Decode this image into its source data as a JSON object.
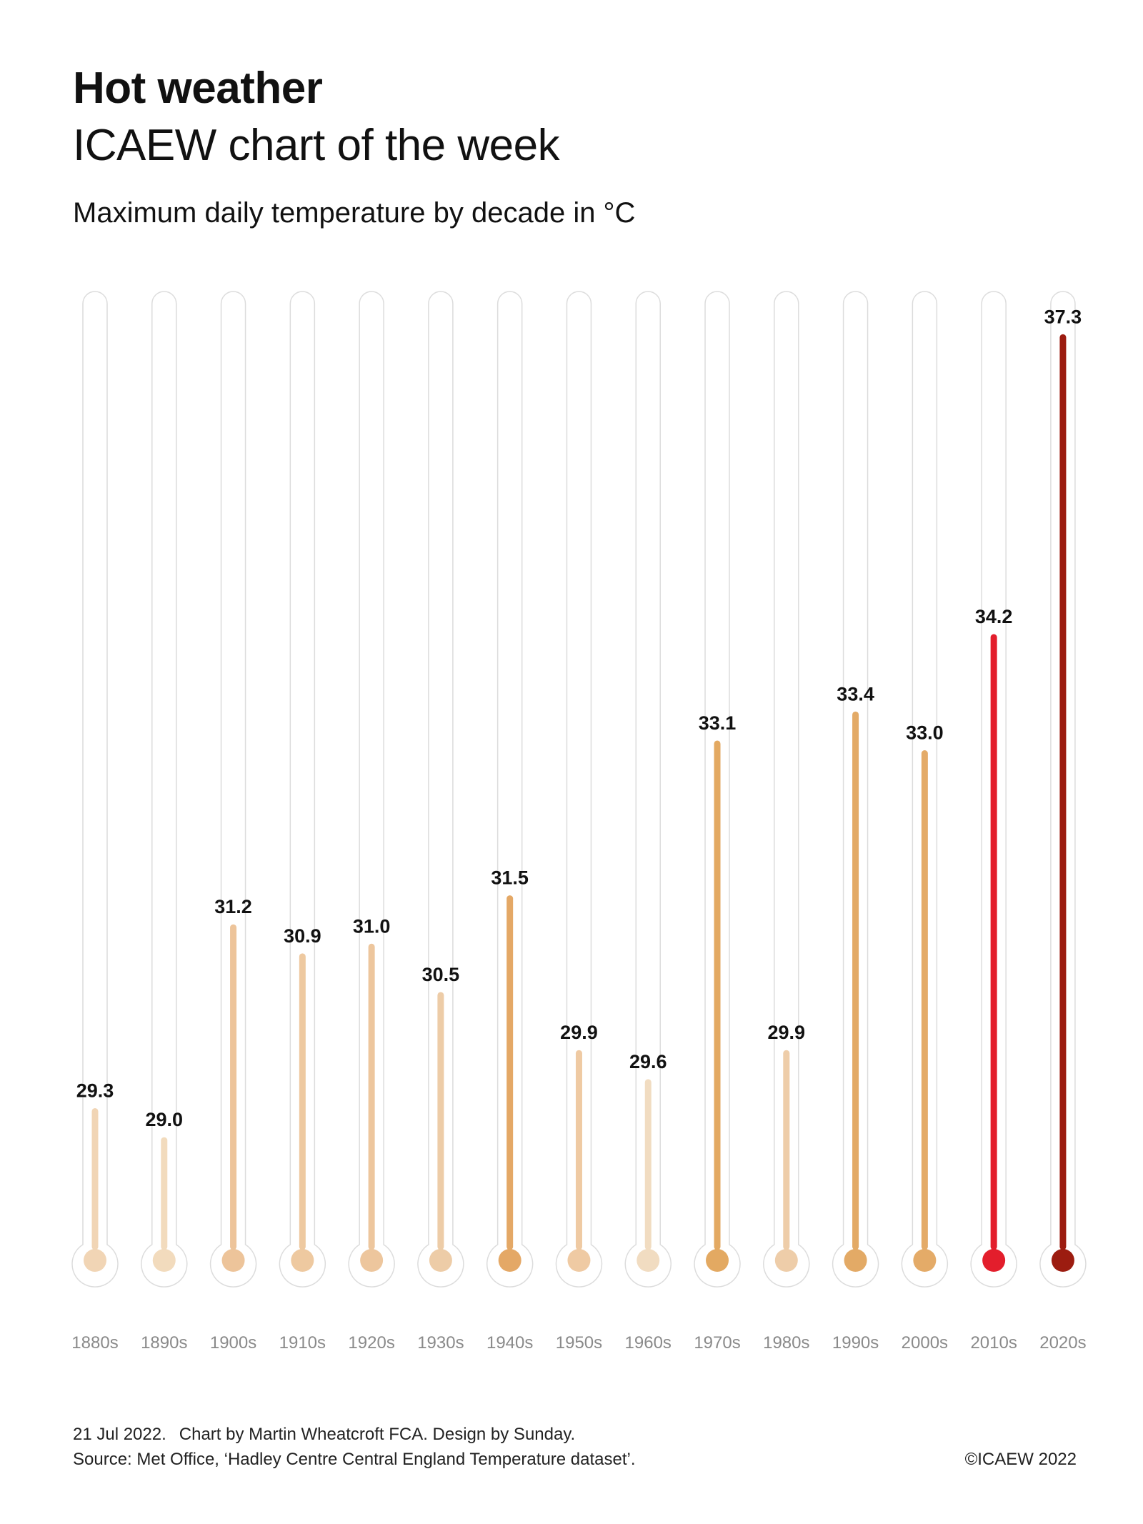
{
  "header": {
    "title": "Hot weather",
    "subtitle": "ICAEW chart of the week",
    "chart_subtitle": "Maximum daily temperature by decade in °C"
  },
  "footer": {
    "date": "21 Jul 2022.",
    "credit": "Chart by Martin Wheatcroft FCA. Design by Sunday.",
    "source": "Source: Met Office, ‘Hadley Centre Central England Temperature dataset’.",
    "copyright": "©ICAEW 2022"
  },
  "chart_data": {
    "type": "bar",
    "title": "Maximum daily temperature by decade in °C",
    "xlabel": "",
    "ylabel": "",
    "ylim": [
      27.9,
      37.45
    ],
    "grid": false,
    "categories": [
      "1880s",
      "1890s",
      "1900s",
      "1910s",
      "1920s",
      "1930s",
      "1940s",
      "1950s",
      "1960s",
      "1970s",
      "1980s",
      "1990s",
      "2000s",
      "2010s",
      "2020s"
    ],
    "values": [
      29.3,
      29.0,
      31.2,
      30.9,
      31.0,
      30.5,
      31.5,
      29.9,
      29.6,
      33.1,
      29.9,
      33.4,
      33.0,
      34.2,
      37.3
    ],
    "value_labels": [
      "29.3",
      "29.0",
      "31.2",
      "30.9",
      "31.0",
      "30.5",
      "31.5",
      "29.9",
      "29.6",
      "33.1",
      "29.9",
      "33.4",
      "33.0",
      "34.2",
      "37.3"
    ],
    "colors": [
      "#f1d5b5",
      "#f2dbbd",
      "#edc49a",
      "#eec9a0",
      "#edc69d",
      "#edcca7",
      "#e4a866",
      "#efcaa3",
      "#f1dcc1",
      "#e3a962",
      "#eecda9",
      "#e3aa66",
      "#e4ab68",
      "#e31e2c",
      "#9c1c10"
    ]
  }
}
